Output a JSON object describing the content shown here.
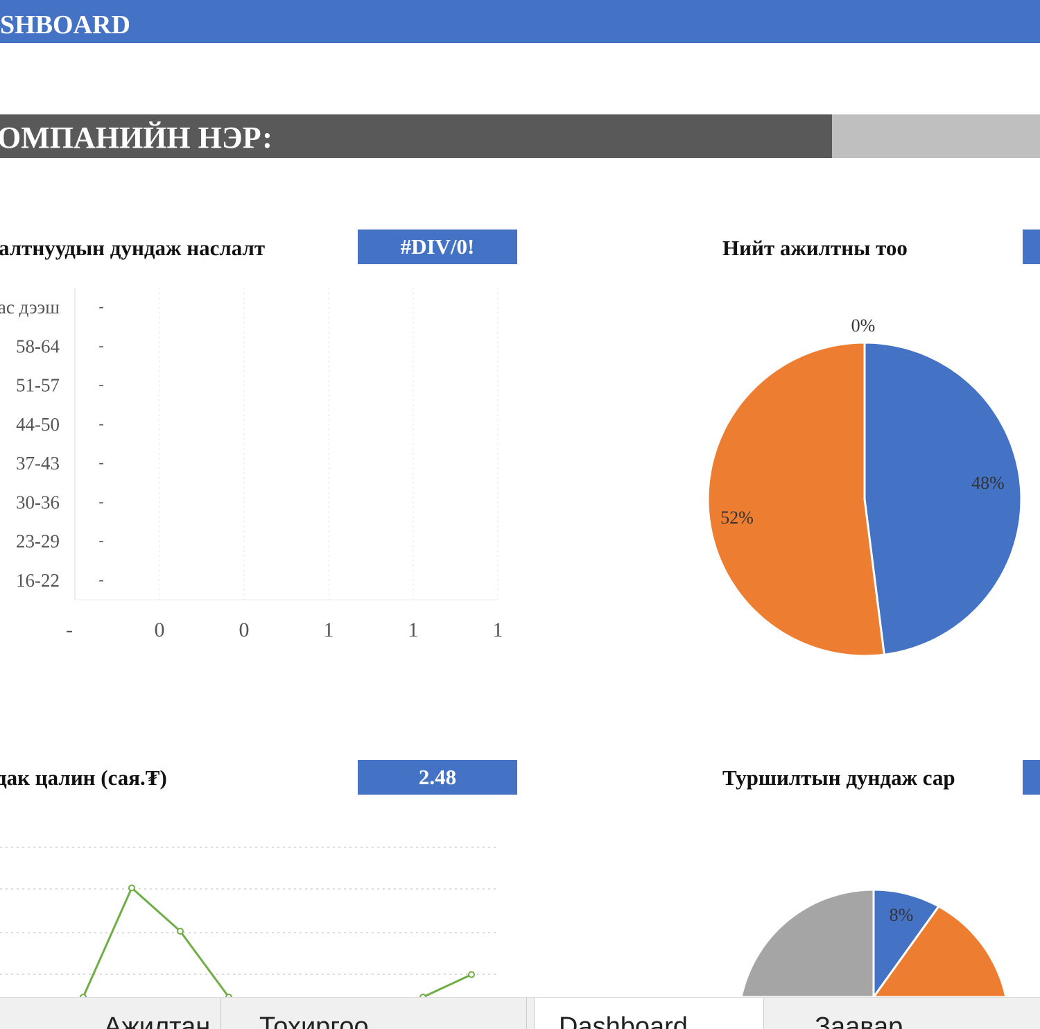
{
  "header": {
    "title": "SHBOARD"
  },
  "company": {
    "label": "ОМПАНИЙН НЭР:",
    "value": ""
  },
  "panels": {
    "avg_age": {
      "title": "алтнуудын дундаж наслалт",
      "value": "#DIV/0!"
    },
    "headcount": {
      "title": "Нийт ажилтны тоо",
      "value": ""
    },
    "avg_salary": {
      "title": "дак цалин (сая.₮)",
      "value": "2.48"
    },
    "avg_probation": {
      "title": "Туршилтын дундаж сар",
      "value": ""
    }
  },
  "colors": {
    "accent": "#4472c4",
    "orange": "#ed7d31",
    "gray": "#a5a5a5",
    "green": "#70ad47",
    "dark": "#595959"
  },
  "chart_data": [
    {
      "type": "bar",
      "orientation": "horizontal",
      "categories": [
        "16-22",
        "23-29",
        "30-36",
        "37-43",
        "44-50",
        "51-57",
        "58-64",
        "ас дээш"
      ],
      "values": [
        0,
        0,
        0,
        0,
        0,
        0,
        0,
        0
      ],
      "data_labels": [
        "-",
        "-",
        "-",
        "-",
        "-",
        "-",
        "-",
        "-"
      ],
      "x_tick_labels": [
        "-",
        "0",
        "0",
        "1",
        "1",
        "1"
      ],
      "grid": true
    },
    {
      "type": "pie",
      "slices": [
        {
          "label": "0%",
          "value": 0,
          "color": "#a5a5a5"
        },
        {
          "label": "48%",
          "value": 48,
          "color": "#4472c4"
        },
        {
          "label": "52%",
          "value": 52,
          "color": "#ed7d31"
        }
      ]
    },
    {
      "type": "line",
      "series": [
        {
          "values": [
            0.4,
            3,
            2,
            0.4,
            null,
            null,
            null,
            0.4,
            1
          ],
          "color": "#70ad47"
        }
      ],
      "grid": true
    },
    {
      "type": "pie",
      "slices": [
        {
          "label": "8%",
          "value": 8,
          "color": "#4472c4"
        },
        {
          "label": "",
          "value": 70,
          "color": "#ed7d31"
        },
        {
          "label": "",
          "value": 22,
          "color": "#a5a5a5"
        }
      ]
    }
  ],
  "sheet_tabs": [
    {
      "label": "Ажилтан"
    },
    {
      "label": "Тохиргоо"
    },
    {
      "label": "Dashboard",
      "active": true
    },
    {
      "label": "Заавар"
    }
  ]
}
